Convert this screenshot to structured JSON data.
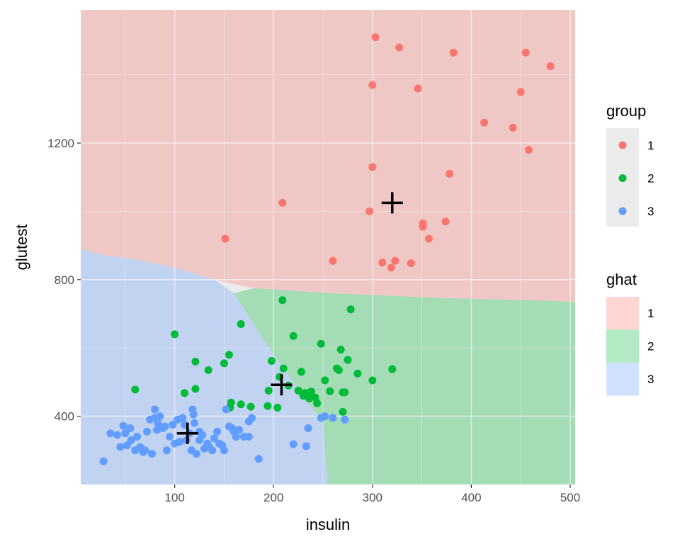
{
  "chart_data": {
    "type": "scatter",
    "title": "",
    "xlabel": "insulin",
    "ylabel": "glutest",
    "xlim": [
      5,
      505
    ],
    "ylim": [
      200,
      1590
    ],
    "x_ticks": [
      100,
      200,
      300,
      400,
      500
    ],
    "y_ticks": [
      400,
      800,
      1200
    ],
    "grid": true,
    "background": "#EBEBEB",
    "groups": [
      {
        "name": "1",
        "color": "#F8766D"
      },
      {
        "name": "2",
        "color": "#00BA38"
      },
      {
        "name": "3",
        "color": "#619CFF"
      }
    ],
    "regions": [
      {
        "name": "1",
        "color": "#F8766D",
        "opacity": 0.3
      },
      {
        "name": "2",
        "color": "#00BA38",
        "opacity": 0.3
      },
      {
        "name": "3",
        "color": "#619CFF",
        "opacity": 0.3
      }
    ],
    "boundary_1_vs_lower": [
      [
        5,
        890
      ],
      [
        30,
        870
      ],
      [
        60,
        860
      ],
      [
        100,
        835
      ],
      [
        140,
        800
      ],
      [
        180,
        775
      ],
      [
        260,
        760
      ],
      [
        380,
        745
      ],
      [
        460,
        740
      ],
      [
        505,
        735
      ]
    ],
    "boundary_2_vs_3": [
      [
        160,
        760
      ],
      [
        200,
        580
      ],
      [
        240,
        420
      ],
      [
        250,
        380
      ],
      [
        255,
        200
      ]
    ],
    "centroids": [
      {
        "group": "1",
        "x": 320,
        "y": 1025
      },
      {
        "group": "2",
        "x": 208,
        "y": 492
      },
      {
        "group": "3",
        "x": 113,
        "y": 350
      }
    ],
    "series": [
      {
        "name": "1",
        "points": [
          [
            303,
            1510
          ],
          [
            327,
            1480
          ],
          [
            382,
            1465
          ],
          [
            455,
            1465
          ],
          [
            480,
            1425
          ],
          [
            300,
            1370
          ],
          [
            346,
            1360
          ],
          [
            450,
            1350
          ],
          [
            413,
            1260
          ],
          [
            442,
            1245
          ],
          [
            458,
            1180
          ],
          [
            300,
            1130
          ],
          [
            378,
            1110
          ],
          [
            209,
            1025
          ],
          [
            297,
            1000
          ],
          [
            351,
            965
          ],
          [
            351,
            955
          ],
          [
            374,
            970
          ],
          [
            357,
            920
          ],
          [
            151,
            920
          ],
          [
            260,
            855
          ],
          [
            310,
            850
          ],
          [
            323,
            855
          ],
          [
            319,
            835
          ],
          [
            339,
            848
          ]
        ]
      },
      {
        "name": "2",
        "points": [
          [
            209,
            740
          ],
          [
            278,
            713
          ],
          [
            167,
            670
          ],
          [
            100,
            640
          ],
          [
            220,
            635
          ],
          [
            248,
            612
          ],
          [
            268,
            595
          ],
          [
            155,
            580
          ],
          [
            121,
            560
          ],
          [
            198,
            562
          ],
          [
            150,
            555
          ],
          [
            275,
            565
          ],
          [
            134,
            535
          ],
          [
            210,
            540
          ],
          [
            228,
            530
          ],
          [
            266,
            535
          ],
          [
            264,
            540
          ],
          [
            285,
            525
          ],
          [
            206,
            515
          ],
          [
            252,
            505
          ],
          [
            300,
            505
          ],
          [
            320,
            538
          ],
          [
            195,
            475
          ],
          [
            121,
            480
          ],
          [
            110,
            468
          ],
          [
            60,
            478
          ],
          [
            215,
            490
          ],
          [
            225,
            475
          ],
          [
            232,
            468
          ],
          [
            238,
            472
          ],
          [
            230,
            460
          ],
          [
            242,
            455
          ],
          [
            257,
            473
          ],
          [
            270,
            470
          ],
          [
            272,
            470
          ],
          [
            236,
            452
          ],
          [
            244,
            438
          ],
          [
            157,
            440
          ],
          [
            167,
            435
          ],
          [
            177,
            428
          ],
          [
            204,
            425
          ],
          [
            194,
            430
          ],
          [
            156,
            425
          ],
          [
            270,
            413
          ]
        ]
      },
      {
        "name": "3",
        "points": [
          [
            28,
            268
          ],
          [
            35,
            350
          ],
          [
            42,
            345
          ],
          [
            48,
            372
          ],
          [
            45,
            310
          ],
          [
            50,
            350
          ],
          [
            52,
            315
          ],
          [
            55,
            365
          ],
          [
            56,
            330
          ],
          [
            60,
            300
          ],
          [
            62,
            340
          ],
          [
            65,
            310
          ],
          [
            68,
            295
          ],
          [
            70,
            300
          ],
          [
            72,
            355
          ],
          [
            75,
            390
          ],
          [
            77,
            290
          ],
          [
            80,
            395
          ],
          [
            80,
            420
          ],
          [
            82,
            360
          ],
          [
            83,
            380
          ],
          [
            85,
            400
          ],
          [
            88,
            365
          ],
          [
            90,
            370
          ],
          [
            92,
            300
          ],
          [
            95,
            340
          ],
          [
            98,
            375
          ],
          [
            100,
            320
          ],
          [
            103,
            390
          ],
          [
            105,
            325
          ],
          [
            108,
            395
          ],
          [
            110,
            375
          ],
          [
            112,
            330
          ],
          [
            115,
            350
          ],
          [
            117,
            300
          ],
          [
            118,
            420
          ],
          [
            119,
            405
          ],
          [
            120,
            380
          ],
          [
            122,
            290
          ],
          [
            125,
            330
          ],
          [
            128,
            345
          ],
          [
            130,
            305
          ],
          [
            133,
            320
          ],
          [
            135,
            310
          ],
          [
            140,
            335
          ],
          [
            143,
            355
          ],
          [
            145,
            320
          ],
          [
            148,
            315
          ],
          [
            150,
            300
          ],
          [
            152,
            420
          ],
          [
            155,
            370
          ],
          [
            158,
            365
          ],
          [
            160,
            355
          ],
          [
            162,
            340
          ],
          [
            165,
            360
          ],
          [
            170,
            340
          ],
          [
            175,
            385
          ],
          [
            178,
            395
          ],
          [
            185,
            275
          ],
          [
            138,
            300
          ],
          [
            125,
            355
          ],
          [
            235,
            365
          ],
          [
            248,
            395
          ],
          [
            252,
            400
          ],
          [
            260,
            395
          ],
          [
            272,
            390
          ],
          [
            220,
            318
          ],
          [
            233,
            312
          ],
          [
            165,
            360
          ],
          [
            175,
            340
          ]
        ]
      }
    ],
    "legend_group_title": "group",
    "legend_ghat_title": "ghat",
    "legend_position": "right"
  },
  "legend_group": {
    "title": "group",
    "items": [
      {
        "label": "1",
        "color": "#F8766D"
      },
      {
        "label": "2",
        "color": "#00BA38"
      },
      {
        "label": "3",
        "color": "#619CFF"
      }
    ]
  },
  "legend_ghat": {
    "title": "ghat",
    "items": [
      {
        "label": "1",
        "color": "#F8766D"
      },
      {
        "label": "2",
        "color": "#00BA38"
      },
      {
        "label": "3",
        "color": "#619CFF"
      }
    ]
  }
}
